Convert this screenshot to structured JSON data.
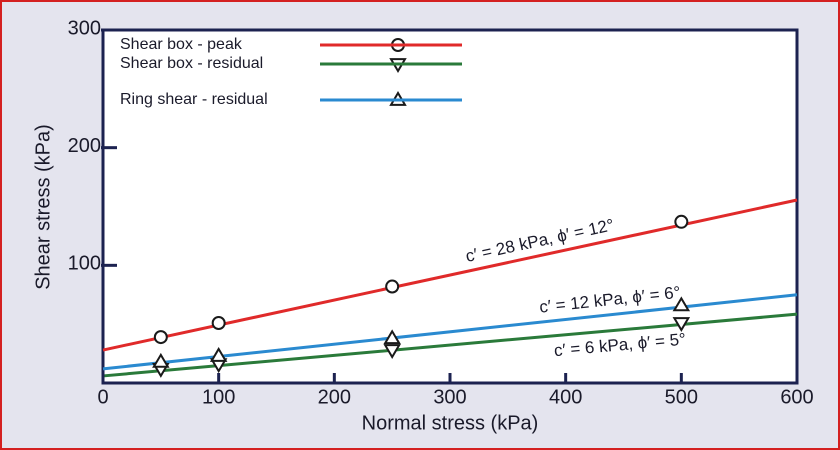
{
  "chart_data": {
    "type": "scatter",
    "xlabel": "Normal stress (kPa)",
    "ylabel": "Shear stress (kPa)",
    "xlim": [
      0,
      600
    ],
    "xticks": [
      0,
      100,
      200,
      300,
      400,
      500,
      600
    ],
    "ylim": [
      0,
      300
    ],
    "yticks": [
      100,
      200,
      300
    ],
    "series": [
      {
        "name": "Shear box - peak",
        "color": "#e02a2a",
        "marker": "circle",
        "x": [
          50,
          100,
          250,
          500
        ],
        "values": [
          39,
          51,
          82,
          137
        ],
        "fit_x": [
          0,
          600
        ],
        "fit_y": [
          28,
          155.5
        ],
        "label": "c′ = 28 kPa, ϕ′ = 12°"
      },
      {
        "name": "Shear box - residual",
        "color": "#2a7a3a",
        "marker": "triangle-down",
        "x": [
          50,
          100,
          250,
          500
        ],
        "values": [
          12,
          16,
          28,
          51
        ],
        "fit_x": [
          0,
          600
        ],
        "fit_y": [
          6,
          58.5
        ],
        "label": "c′ = 6 kPa, ϕ′ = 5°"
      },
      {
        "name": "Ring shear - residual",
        "color": "#2a8ad0",
        "marker": "triangle-up",
        "x": [
          50,
          100,
          250,
          500
        ],
        "values": [
          18,
          23,
          38,
          66
        ],
        "fit_x": [
          0,
          600
        ],
        "fit_y": [
          12,
          75
        ],
        "label": "c′ = 12 kPa, ϕ′ = 6°"
      }
    ]
  }
}
